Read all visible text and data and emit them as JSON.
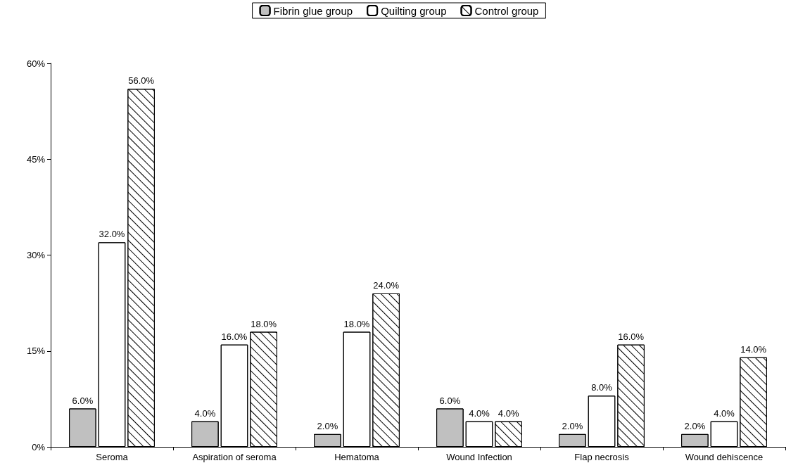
{
  "chart_data": {
    "type": "bar",
    "categories": [
      "Seroma",
      "Aspiration of seroma",
      "Hematoma",
      "Wound Infection",
      "Flap necrosis",
      "Wound dehiscence"
    ],
    "series": [
      {
        "name": "Fibrin glue group",
        "color": "#c0c0c0",
        "values": [
          6,
          4,
          2,
          6,
          2,
          2
        ],
        "value_labels": [
          "6.0%",
          "4.0%",
          "2.0%",
          "6.0%",
          "2.0%",
          "2.0%"
        ]
      },
      {
        "name": "Quilting group",
        "color": "#ffffff",
        "values": [
          32,
          16,
          18,
          4,
          8,
          4
        ],
        "value_labels": [
          "32.0%",
          "16.0%",
          "18.0%",
          "4.0%",
          "8.0%",
          "4.0%"
        ]
      },
      {
        "name": "Control group",
        "color": "#ffffff",
        "values": [
          56,
          18,
          24,
          4,
          16,
          14
        ],
        "value_labels": [
          "56.0%",
          "18.0%",
          "24.0%",
          "4.0%",
          "16.0%",
          "14.0%"
        ]
      }
    ],
    "ylim": [
      0,
      60
    ],
    "yticks": [
      {
        "value": 0,
        "label": "0%"
      },
      {
        "value": 15,
        "label": "15%"
      },
      {
        "value": 30,
        "label": "30%"
      },
      {
        "value": 45,
        "label": "45%"
      },
      {
        "value": 60,
        "label": "60%"
      }
    ],
    "grid": false,
    "legend": "top"
  }
}
